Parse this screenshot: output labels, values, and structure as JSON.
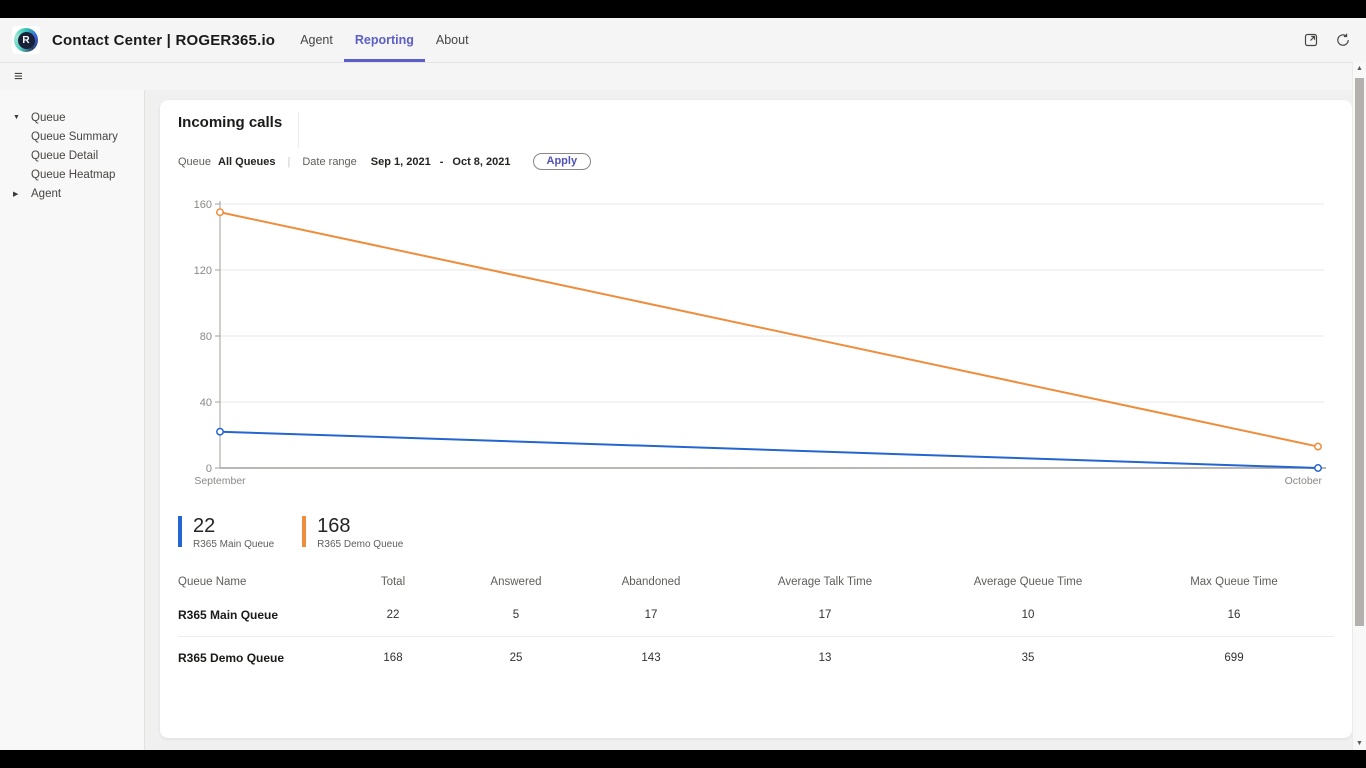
{
  "colors": {
    "accent": "#5b5fc7",
    "apply_text": "#4f52b2",
    "series_blue": "#2565d0",
    "series_orange": "#ef8d3c"
  },
  "icons": {
    "hamburger": "≡",
    "caret_down": "▼",
    "caret_right": "▶",
    "scroll_up": "▲",
    "scroll_down": "▼",
    "logo_letter": "R"
  },
  "chrome": {
    "app_title": "Contact Center | ROGER365.io",
    "tabs": [
      {
        "label": "Agent",
        "active": false
      },
      {
        "label": "Reporting",
        "active": true
      },
      {
        "label": "About",
        "active": false
      }
    ]
  },
  "sidebar": {
    "items": [
      {
        "label": "Queue"
      },
      {
        "label": "Queue Summary"
      },
      {
        "label": "Queue Detail"
      },
      {
        "label": "Queue Heatmap"
      },
      {
        "label": "Agent"
      }
    ]
  },
  "main": {
    "title": "Incoming calls",
    "filters": {
      "queue_label": "Queue",
      "queue_value": "All Queues",
      "separator": "|",
      "date_range_label": "Date range",
      "date_from": "Sep 1, 2021",
      "date_separator": "-",
      "date_to": "Oct 8, 2021",
      "apply_label": "Apply"
    },
    "legend": [
      {
        "value": "22",
        "label": "R365 Main Queue",
        "color": "#2565d0"
      },
      {
        "value": "168",
        "label": "R365 Demo Queue",
        "color": "#ef8d3c"
      }
    ],
    "table": {
      "columns": [
        "Queue Name",
        "Total",
        "Answered",
        "Abandoned",
        "Average Talk Time",
        "Average Queue Time",
        "Max Queue Time"
      ],
      "rows": [
        {
          "name": "R365 Main Queue",
          "values": [
            22,
            5,
            17,
            17,
            10,
            16
          ]
        },
        {
          "name": "R365 Demo Queue",
          "values": [
            168,
            25,
            143,
            13,
            35,
            699
          ]
        }
      ]
    }
  },
  "chart_data": {
    "type": "line",
    "title": "Incoming calls",
    "x": [
      "September",
      "October"
    ],
    "series": [
      {
        "name": "R365 Main Queue",
        "color": "#2565d0",
        "values": [
          22,
          0
        ]
      },
      {
        "name": "R365 Demo Queue",
        "color": "#ef8d3c",
        "values": [
          155,
          13
        ]
      }
    ],
    "ylim": [
      0,
      160
    ],
    "yticks": [
      0,
      40,
      80,
      120,
      160
    ],
    "grid": true,
    "legend_position": "bottom-left"
  }
}
